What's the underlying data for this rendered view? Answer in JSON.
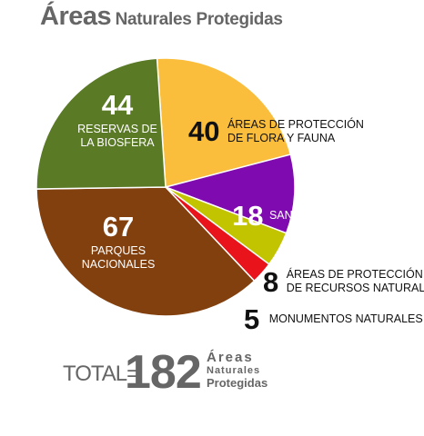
{
  "title": {
    "main": "Áreas",
    "sub": "Naturales Protegidas"
  },
  "chart_data": {
    "type": "pie",
    "title": "Áreas Naturales Protegidas",
    "slices": [
      {
        "value": 40,
        "label": "ÁREAS DE PROTECCIÓN DE FLORA Y FAUNA",
        "color": "#fbbe3c"
      },
      {
        "value": 18,
        "label": "SANTUARIOS",
        "color": "#7f0bb0"
      },
      {
        "value": 8,
        "label": "ÁREAS DE PROTECCIÓN DE RECURSOS NATURALES",
        "color": "#c3c400"
      },
      {
        "value": 5,
        "label": "MONUMENTOS NATURALES",
        "color": "#e8131b"
      },
      {
        "value": 67,
        "label": "PARQUES NACIONALES",
        "color": "#82400f"
      },
      {
        "value": 44,
        "label": "RESERVAS DE LA BIOSFERA",
        "color": "#5a7a26"
      }
    ]
  },
  "labels": {
    "flora_num": "40",
    "flora_l1": "ÁREAS DE PROTECCIÓN",
    "flora_l2": "DE FLORA Y FAUNA",
    "sant_num": "18",
    "sant_l1": "SANTUARIOS",
    "recursos_num": "8",
    "recursos_l1": "ÁREAS DE PROTECCIÓN",
    "recursos_l2": "DE RECURSOS NATURALES",
    "monu_num": "5",
    "monu_l1": "MONUMENTOS NATURALES",
    "parques_num": "67",
    "parques_l1": "PARQUES",
    "parques_l2": "NACIONALES",
    "reservas_num": "44",
    "reservas_l1": "RESERVAS DE",
    "reservas_l2": "LA BIOSFERA"
  },
  "total": {
    "label": "TOTAL=",
    "value": "182",
    "word1": "Áreas",
    "word2": "Naturales",
    "word3": "Protegidas"
  }
}
